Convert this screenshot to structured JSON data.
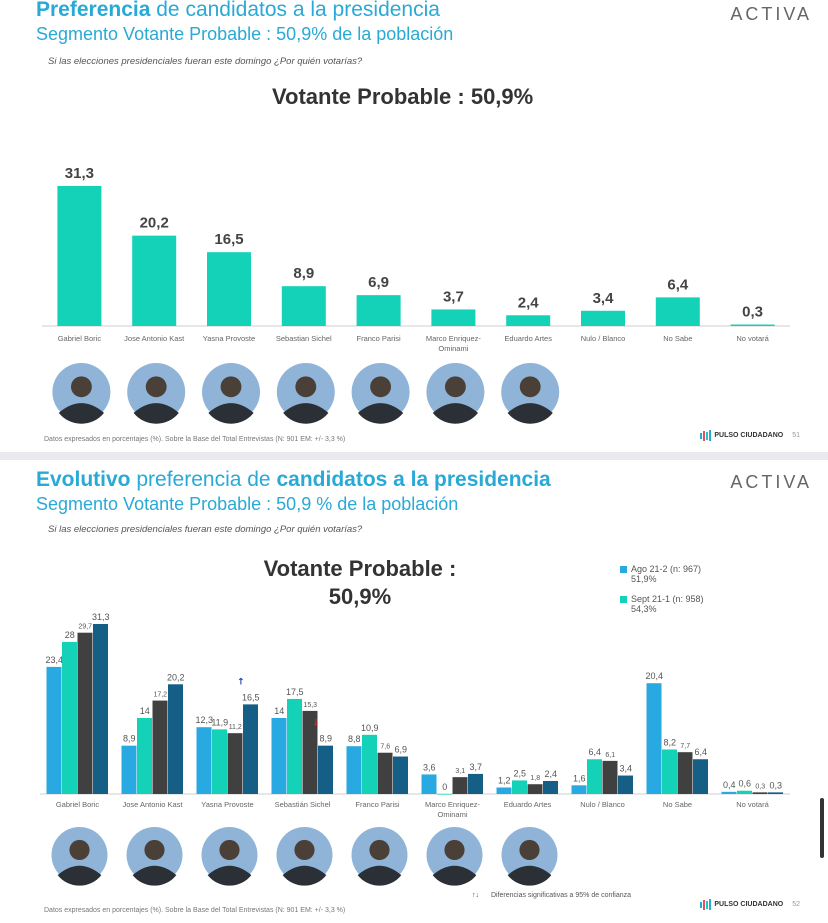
{
  "slide1": {
    "title_bold": "Preferencia",
    "title_rest": "de candidatos a la presidencia",
    "subtitle": "Segmento Votante Probable : 50,9% de la población",
    "question": "Si las elecciones presidenciales fueran este domingo ¿Por quién votarías?",
    "brand": "ACTIVA",
    "segment_label": "Votante Probable : 50,9%",
    "footnote": "Datos expresados en porcentajes (%). Sobre la Base del Total Entrevistas (N: 901  EM: +/- 3,3 %)",
    "footer_brand": "PULSO CIUDADANO",
    "page_number": "51"
  },
  "slide2": {
    "title_bold": "Evolutivo",
    "title_mid": "preferencia de",
    "title_rest": "candidatos a la presidencia",
    "subtitle": "Segmento Votante Probable : 50,9 % de la población",
    "question": "Si las elecciones presidenciales fueran este domingo ¿Por quién votarías?",
    "brand": "ACTIVA",
    "segment_line1": "Votante Probable :",
    "segment_line2": "50,9%",
    "legend": [
      {
        "label": "Ago 21-2 (n: 967)",
        "sub": "51,9%",
        "color": "#29a9e1"
      },
      {
        "label": "Sept 21-1 (n: 958)",
        "sub": "54,3%",
        "color": "#14d2b8"
      }
    ],
    "sig_note": "Diferencias significativas a 95% de confianza",
    "footnote": "Datos expresados en porcentajes (%). Sobre la Base del Total Entrevistas (N: 901  EM: +/- 3,3 %)",
    "footer_brand": "PULSO CIUDADANO",
    "page_number": "52"
  },
  "chart_data": [
    {
      "type": "bar",
      "categories": [
        "Gabriel Boric",
        "Jose Antonio Kast",
        "Yasna Provoste",
        "Sebastian Sichel",
        "Franco Parisi",
        "Marco Enriquez-Ominami",
        "Eduardo Artes",
        "Nulo / Blanco",
        "No Sabe",
        "No votará"
      ],
      "category_labels": [
        "Gabriel Boric",
        "Jose Antonio Kast",
        "Yasna Provoste",
        "Sebastian Sichel",
        "Franco Parisi",
        "Marco Enriquez-\nOminami",
        "Eduardo Artes",
        "Nulo / Blanco",
        "No Sabe",
        "No votará"
      ],
      "values": [
        31.3,
        20.2,
        16.5,
        8.9,
        6.9,
        3.7,
        2.4,
        3.4,
        6.4,
        0.3
      ],
      "value_labels": [
        "31,3",
        "20,2",
        "16,5",
        "8,9",
        "6,9",
        "3,7",
        "2,4",
        "3,4",
        "6,4",
        "0,3"
      ],
      "color": "#14d2b8",
      "title": "Votante Probable : 50,9%",
      "ylim": [
        0,
        35
      ],
      "grid": false,
      "legend": "none"
    },
    {
      "type": "bar",
      "categories": [
        "Gabriel Boric",
        "Jose Antonio Kast",
        "Yasna Provoste",
        "Sebastián Sichel",
        "Franco Parisi",
        "Marco Enriquez-Ominami",
        "Eduardo Artes",
        "Nulo / Blanco",
        "No Sabe",
        "No votará"
      ],
      "category_labels": [
        "Gabriel Boric",
        "Jose Antonio Kast",
        "Yasna Provoste",
        "Sebastián Sichel",
        "Franco Parisi",
        "Marco Enriquez-\nOminami",
        "Eduardo Artes",
        "Nulo / Blanco",
        "No Sabe",
        "No votará"
      ],
      "series": [
        {
          "name": "Ago 21-2 (n: 967)",
          "color": "#29a9e1",
          "values": [
            23.4,
            8.9,
            12.3,
            14,
            8.8,
            3.6,
            1.2,
            1.6,
            20.4,
            0.4
          ],
          "labels": [
            "23,4",
            "8,9",
            "12,3",
            "14",
            "8,8",
            "3,6",
            "1,2",
            "1,6",
            "20,4",
            "0,4"
          ]
        },
        {
          "name": "Sept 21-1 (n: 958)",
          "color": "#14d2b8",
          "values": [
            28,
            14,
            11.9,
            17.5,
            10.9,
            0,
            2.5,
            6.4,
            8.2,
            0.6
          ],
          "labels": [
            "28",
            "14",
            "11,9",
            "17,5",
            "10,9",
            "0",
            "2,5",
            "6,4",
            "8,2",
            "0,6"
          ]
        },
        {
          "color": "#404040",
          "values": [
            29.7,
            17.2,
            11.2,
            15.3,
            7.6,
            3.1,
            1.8,
            6.1,
            7.7,
            0.3
          ],
          "labels": [
            "29,7",
            "17,2",
            "11,2",
            "15,3",
            "7,6",
            "3,1",
            "1,8",
            "6,1",
            "7,7",
            "0,3"
          ]
        },
        {
          "color": "#155f86",
          "values": [
            31.3,
            20.2,
            16.5,
            8.9,
            6.9,
            3.7,
            2.4,
            3.4,
            6.4,
            0.3
          ],
          "labels": [
            "31,3",
            "20,2",
            "16,5",
            "8,9",
            "6,9",
            "3,7",
            "2,4",
            "3,4",
            "6,4",
            "0,3"
          ]
        }
      ],
      "significance": [
        {
          "category": "Yasna Provoste",
          "direction": "up"
        },
        {
          "category": "Sebastián Sichel",
          "direction": "down"
        }
      ],
      "title": "Votante Probable : 50,9%",
      "ylim": [
        0,
        35
      ],
      "grid": false,
      "legend": "top-right"
    }
  ]
}
